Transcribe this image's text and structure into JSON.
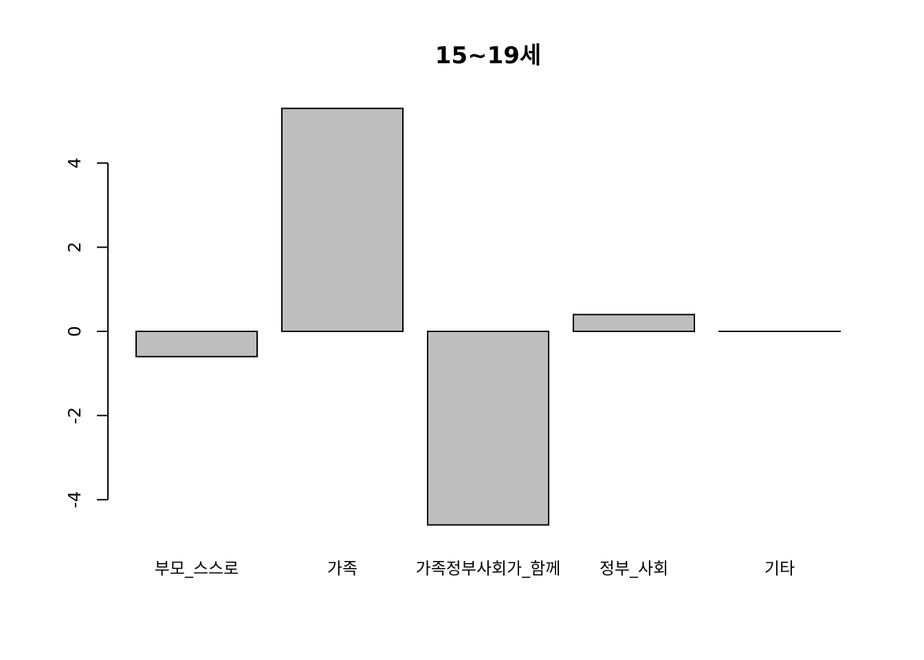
{
  "chart_data": {
    "type": "bar",
    "title": "15~19세",
    "xlabel": "",
    "ylabel": "",
    "categories": [
      "부모_스스로",
      "가족",
      "가족정부사회가_함께",
      "정부_사회",
      "기타"
    ],
    "values": [
      -0.6,
      5.3,
      -4.6,
      0.4,
      0.0
    ],
    "yticks": [
      -4,
      -2,
      0,
      2,
      4
    ],
    "ytick_labels": [
      "-4",
      "-2",
      "0",
      "2",
      "4"
    ],
    "ylim": [
      -4.6,
      5.3
    ],
    "grid": false,
    "legend": "none",
    "colors": {
      "bar_fill": "#bebebe",
      "bar_stroke": "#000000",
      "axis": "#000000"
    }
  }
}
